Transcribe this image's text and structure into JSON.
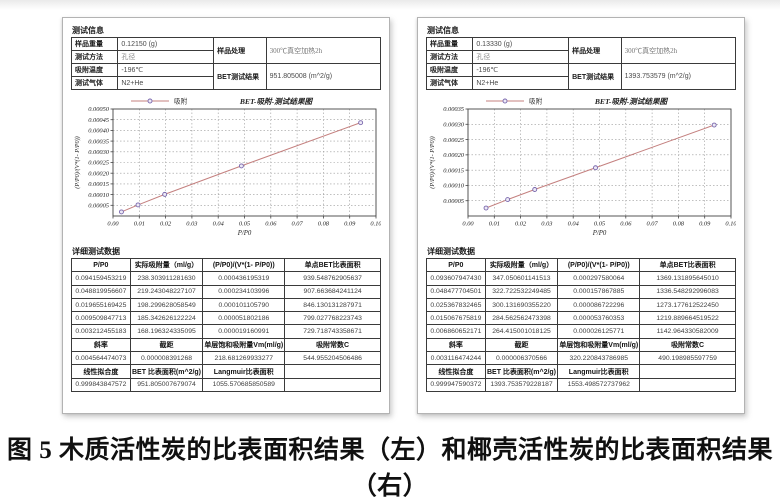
{
  "caption": "图 5 木质活性炭的比表面积结果（左）和椰壳活性炭的比表面积结果（右）",
  "panels": [
    {
      "info": {
        "title": "测试信息",
        "rows": [
          {
            "label": "样品重量",
            "value": "0.12150 (g)"
          },
          {
            "label": "测试方法",
            "value": "孔径"
          },
          {
            "label": "吸附温度",
            "value": "-196℃"
          },
          {
            "label": "测试气体",
            "value": "N2+He"
          }
        ],
        "right_rows": [
          {
            "label": "样品处理",
            "value": "300℃真空加热2h"
          },
          {
            "label": "BET测试结果",
            "value": "951.805008 (m^2/g)"
          }
        ]
      },
      "detail": {
        "title": "详细测试数据",
        "headers": [
          "P/P0",
          "实际吸附量（ml/g）",
          "(P/P0)/(V*(1- P/P0))",
          "单点BET比表面积"
        ],
        "rows": [
          [
            "0.094159453219",
            "238.303911281630",
            "0.000436195319",
            "939.548762905637"
          ],
          [
            "0.048819956607",
            "219.243048227107",
            "0.000234103996",
            "907.663684241124"
          ],
          [
            "0.019655169425",
            "198.299628058549",
            "0.000101105790",
            "846.130131287971"
          ],
          [
            "0.009509847713",
            "185.342626122224",
            "0.000051802186",
            "799.027768223743"
          ],
          [
            "0.003212455183",
            "168.196324335095",
            "0.000019160991",
            "729.718743358671"
          ]
        ],
        "fit_headers": [
          "斜率",
          "截距",
          "单层饱和吸附量Vm(ml/g)",
          "吸附常数C"
        ],
        "fit_values": [
          "0.004564474073",
          "0.000008391268",
          "218.681269933277",
          "544.955204506486"
        ],
        "result_headers": [
          "线性拟合度",
          "BET 比表面积(m^2/g)",
          "Langmuir比表面积",
          ""
        ],
        "result_values": [
          "0.999843847572",
          "951.805007679074",
          "1055.570685850589",
          ""
        ]
      }
    },
    {
      "info": {
        "title": "测试信息",
        "rows": [
          {
            "label": "样品重量",
            "value": "0.13330 (g)"
          },
          {
            "label": "测试方法",
            "value": "孔径"
          },
          {
            "label": "吸附温度",
            "value": "-196℃"
          },
          {
            "label": "测试气体",
            "value": "N2+He"
          }
        ],
        "right_rows": [
          {
            "label": "样品处理",
            "value": "300℃真空加热2h"
          },
          {
            "label": "BET测试结果",
            "value": "1393.753579 (m^2/g)"
          }
        ]
      },
      "detail": {
        "title": "详细测试数据",
        "headers": [
          "P/P0",
          "实际吸附量（ml/g）",
          "(P/P0)/(V*(1- P/P0))",
          "单点BET比表面积"
        ],
        "rows": [
          [
            "0.093607947430",
            "347.050601141513",
            "0.000297580064",
            "1369.131895645010"
          ],
          [
            "0.048477704501",
            "322.722532249485",
            "0.000157867885",
            "1336.548292996083"
          ],
          [
            "0.025367832465",
            "300.131690355220",
            "0.000086722296",
            "1273.177612522450"
          ],
          [
            "0.015067675819",
            "284.562562473398",
            "0.000053760353",
            "1219.889664519522"
          ],
          [
            "0.006860652171",
            "264.415001018125",
            "0.000026125771",
            "1142.964330582009"
          ]
        ],
        "fit_headers": [
          "斜率",
          "截距",
          "单层饱和吸附量Vm(ml/g)",
          "吸附常数C"
        ],
        "fit_values": [
          "0.003116474244",
          "0.000006370566",
          "320.220843786985",
          "490.198985597759"
        ],
        "result_headers": [
          "线性拟合度",
          "BET 比表面积(m^2/g)",
          "Langmuir比表面积",
          ""
        ],
        "result_values": [
          "0.999947590372",
          "1393.753579228187",
          "1553.498572737962",
          ""
        ]
      }
    }
  ],
  "chart_data": [
    {
      "type": "line",
      "title": "BET-吸附-测试结果图",
      "legend": [
        "吸附"
      ],
      "legend_position": "top-left",
      "xlabel": "P/P0",
      "ylabel": "(P/P0)/(V*(1- P/P0))",
      "grid": true,
      "xlim": [
        0,
        0.1
      ],
      "ylim": [
        0,
        0.0005
      ],
      "xtick_values": [
        0,
        0.01,
        0.02,
        0.03,
        0.04,
        0.05,
        0.06,
        0.07,
        0.08,
        0.09,
        0.1
      ],
      "xtick_labels": [
        "0.00",
        "0.01",
        "0.02",
        "0.03",
        "0.04",
        "0.05",
        "0.06",
        "0.07",
        "0.08",
        "0.09",
        "0.10"
      ],
      "ytick_values": [
        5e-05,
        0.0001,
        0.00015,
        0.0002,
        0.00025,
        0.0003,
        0.00035,
        0.0004,
        0.00045,
        0.0005
      ],
      "ytick_labels": [
        "0.00005",
        "0.00010",
        "0.00015",
        "0.00020",
        "0.00025",
        "0.00030",
        "0.00035",
        "0.00040",
        "0.00045",
        "0.00050"
      ],
      "series": [
        {
          "name": "吸附",
          "x": [
            0.003212455183,
            0.009509847713,
            0.019655169425,
            0.048819956607,
            0.094159453219
          ],
          "y": [
            1.9160991e-05,
            5.1802186e-05,
            0.00010110579,
            0.000234103996,
            0.000436195319
          ]
        }
      ],
      "line_color": "#c4807f",
      "marker_color": "#7a68ad"
    },
    {
      "type": "line",
      "title": "BET-吸附-测试结果图",
      "legend": [
        "吸附"
      ],
      "legend_position": "top-left",
      "xlabel": "P/P0",
      "ylabel": "(P/P0)/(V*(1- P/P0))",
      "grid": true,
      "xlim": [
        0,
        0.1
      ],
      "ylim": [
        0,
        0.00035
      ],
      "xtick_values": [
        0,
        0.01,
        0.02,
        0.03,
        0.04,
        0.05,
        0.06,
        0.07,
        0.08,
        0.09,
        0.1
      ],
      "xtick_labels": [
        "0.00",
        "0.01",
        "0.02",
        "0.03",
        "0.04",
        "0.05",
        "0.06",
        "0.07",
        "0.08",
        "0.09",
        "0.10"
      ],
      "ytick_values": [
        5e-05,
        0.0001,
        0.00015,
        0.0002,
        0.00025,
        0.0003,
        0.00035
      ],
      "ytick_labels": [
        "0.00005",
        "0.00010",
        "0.00015",
        "0.00020",
        "0.00025",
        "0.00030",
        "0.00035"
      ],
      "series": [
        {
          "name": "吸附",
          "x": [
            0.006860652171,
            0.015067675819,
            0.025367832465,
            0.048477704501,
            0.09360794743
          ],
          "y": [
            2.6125771e-05,
            5.3760353e-05,
            8.6722296e-05,
            0.000157867885,
            0.000297580064
          ]
        }
      ],
      "line_color": "#c4807f",
      "marker_color": "#7a68ad"
    }
  ]
}
